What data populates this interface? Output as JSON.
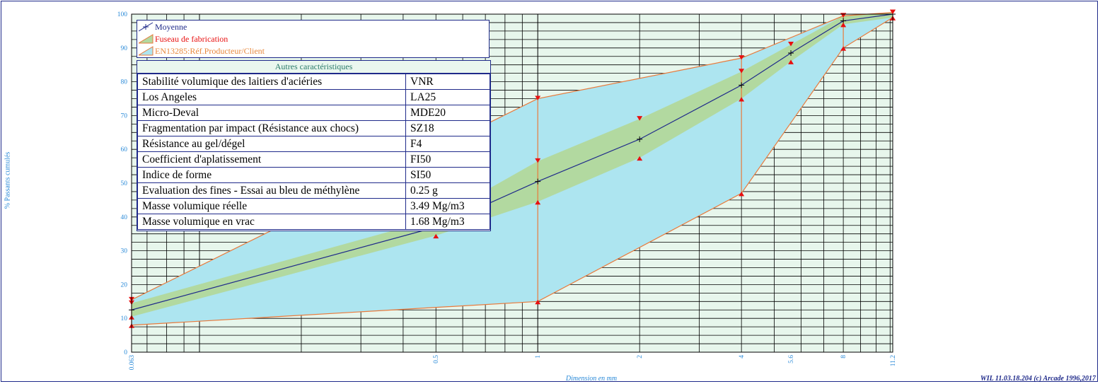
{
  "chart_data": {
    "type": "line",
    "xlabel": "Dimension en mm",
    "ylabel": "% Passants cumulés",
    "x_scale": "log",
    "xlim": [
      0.063,
      11.2
    ],
    "ylim": [
      0,
      100
    ],
    "x_ticks": [
      "0.063",
      "0.5",
      "1",
      "2",
      "4",
      "5.6",
      "8",
      "11.2"
    ],
    "y_ticks": [
      "0",
      "10",
      "20",
      "30",
      "40",
      "50",
      "60",
      "70",
      "80",
      "90",
      "100"
    ],
    "grid": true,
    "legend_position": "top-left",
    "series": [
      {
        "name": "Moyenne",
        "kind": "line",
        "color": "#1f2a8a",
        "x": [
          0.063,
          0.5,
          1,
          2,
          4,
          5.6,
          8,
          11.2
        ],
        "y": [
          12.5,
          37,
          50.5,
          63,
          79,
          88.5,
          98,
          100
        ]
      },
      {
        "name": "Fuseau de fabrication",
        "kind": "band",
        "color": "#b2d9a0",
        "x": [
          0.063,
          0.5,
          1,
          2,
          4,
          5.6,
          8,
          11.2
        ],
        "lower": [
          10.5,
          34.5,
          44.5,
          57.5,
          75,
          86,
          97,
          99
        ],
        "upper": [
          14.5,
          39.5,
          56.5,
          69,
          83,
          91,
          99.5,
          100.5
        ]
      },
      {
        "name": "EN13285:Réf.Producteur/Client",
        "kind": "band",
        "color": "#ade5f0",
        "x": [
          0.063,
          1,
          4,
          8,
          11.2
        ],
        "lower": [
          8,
          15,
          47,
          90,
          99
        ],
        "upper": [
          15.5,
          75,
          87,
          99.5,
          100.5
        ]
      }
    ]
  },
  "colors": {
    "plot_background": "#e7f6ec",
    "grid": "#000000",
    "axis_text": "#2a8ad8",
    "envelope_line": "#e87a3c",
    "marker": "#e81010",
    "mean_line": "#1f2a8a"
  },
  "legend": {
    "items": [
      {
        "label": "Moyenne",
        "color": "#1f2a8a"
      },
      {
        "label": "Fuseau de fabrication",
        "color": "#e81010"
      },
      {
        "label": "EN13285:Réf.Producteur/Client",
        "color": "#e8883c"
      }
    ]
  },
  "properties": {
    "title": "Autres caractéristiques",
    "rows": [
      {
        "label": "Stabilité volumique des laitiers d'aciéries",
        "value": "VNR"
      },
      {
        "label": "Los Angeles",
        "value": "LA25"
      },
      {
        "label": "Micro-Deval",
        "value": "MDE20"
      },
      {
        "label": "Fragmentation par impact (Résistance aux chocs)",
        "value": "SZ18"
      },
      {
        "label": "Résistance au gel/dégel",
        "value": "F4"
      },
      {
        "label": "Coefficient d'aplatissement",
        "value": "FI50"
      },
      {
        "label": "Indice de forme",
        "value": "SI50"
      },
      {
        "label": "Evaluation des fines - Essai au bleu de méthylène",
        "value": "0.25 g"
      },
      {
        "label": "Masse volumique réelle",
        "value": "3.49 Mg/m3"
      },
      {
        "label": "Masse volumique en vrac",
        "value": "1.68 Mg/m3"
      }
    ]
  },
  "footer": "WIL 11.03.18.204 (c) Arcade 1996,2017"
}
